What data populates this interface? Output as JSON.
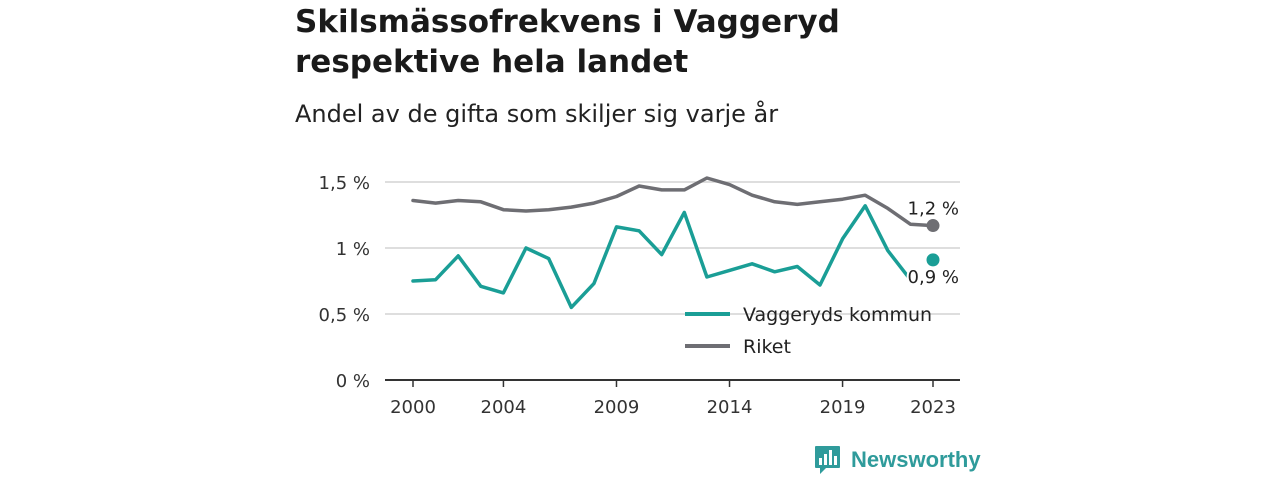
{
  "header": {
    "title": "Skilsmässofrekvens i Vaggeryd respektive hela landet",
    "subtitle": "Andel av de gifta som skiljer sig varje år"
  },
  "brand": {
    "name": "Newsworthy",
    "color": "#2f9b9b"
  },
  "chart_data": {
    "type": "line",
    "x": [
      2000,
      2001,
      2002,
      2003,
      2004,
      2005,
      2006,
      2007,
      2008,
      2009,
      2010,
      2011,
      2012,
      2013,
      2014,
      2015,
      2016,
      2017,
      2018,
      2019,
      2020,
      2021,
      2022,
      2023
    ],
    "x_ticks": [
      2000,
      2004,
      2009,
      2014,
      2019,
      2023
    ],
    "x_tick_labels": [
      "2000",
      "2004",
      "2009",
      "2014",
      "2019",
      "2023"
    ],
    "y_ticks": [
      0,
      0.5,
      1,
      1.5
    ],
    "y_tick_labels": [
      "0 %",
      "0,5 %",
      "1 %",
      "1,5 %"
    ],
    "ylim": [
      0,
      1.5
    ],
    "grid": true,
    "legend_position": "bottom-right",
    "series": [
      {
        "name": "Vaggeryds kommun",
        "color": "#1a9e96",
        "values": [
          0.75,
          0.76,
          0.94,
          0.71,
          0.66,
          1.0,
          0.92,
          0.55,
          0.73,
          1.16,
          1.13,
          0.95,
          1.27,
          0.78,
          0.83,
          0.88,
          0.82,
          0.86,
          0.72,
          1.07,
          1.32,
          0.98,
          0.76,
          0.91
        ],
        "end_label": "0,9 %",
        "end_marker_detached": true
      },
      {
        "name": "Riket",
        "color": "#6e6e73",
        "values": [
          1.36,
          1.34,
          1.36,
          1.35,
          1.29,
          1.28,
          1.29,
          1.31,
          1.34,
          1.39,
          1.47,
          1.44,
          1.44,
          1.53,
          1.48,
          1.4,
          1.35,
          1.33,
          1.35,
          1.37,
          1.4,
          1.3,
          1.18,
          1.17
        ],
        "end_label": "1,2 %",
        "end_marker_detached": false
      }
    ]
  }
}
